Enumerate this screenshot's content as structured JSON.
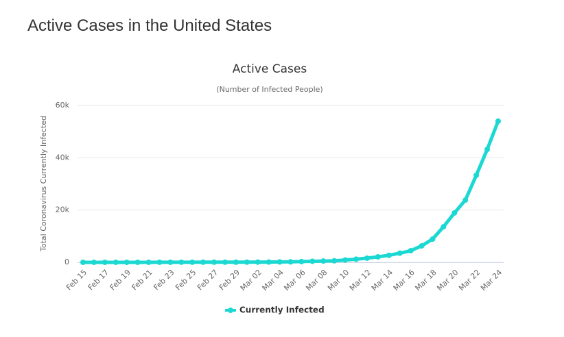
{
  "page_title": "Active Cases in the United States",
  "chart_data": {
    "type": "line",
    "title": "Active Cases",
    "subtitle": "(Number of Infected People)",
    "y_label": "Total Coronavirus Currently Infected",
    "categories": [
      "Feb 15",
      null,
      "Feb 17",
      null,
      "Feb 19",
      null,
      "Feb 21",
      null,
      "Feb 23",
      null,
      "Feb 25",
      null,
      "Feb 27",
      null,
      "Feb 29",
      null,
      "Mar 02",
      null,
      "Mar 04",
      null,
      "Mar 06",
      null,
      "Mar 08",
      null,
      "Mar 10",
      null,
      "Mar 12",
      null,
      "Mar 14",
      null,
      "Mar 16",
      null,
      "Mar 18",
      null,
      "Mar 20",
      null,
      "Mar 22",
      null,
      "Mar 24"
    ],
    "series": [
      {
        "name": "Currently Infected",
        "color": "#1cd8d2",
        "values": [
          12,
          12,
          12,
          12,
          12,
          12,
          12,
          30,
          30,
          40,
          45,
          50,
          55,
          60,
          60,
          70,
          90,
          110,
          150,
          200,
          290,
          400,
          500,
          580,
          900,
          1200,
          1600,
          2100,
          2700,
          3500,
          4450,
          6300,
          8900,
          13600,
          18900,
          23800,
          33300,
          43200,
          54000
        ]
      }
    ],
    "ylim": [
      0,
      60000
    ],
    "yticks": [
      0,
      {
        "value": 20000,
        "label": "20k"
      },
      {
        "value": 40000,
        "label": "40k"
      },
      {
        "value": 60000,
        "label": "60k"
      }
    ],
    "grid": true,
    "legend": "bottom"
  }
}
